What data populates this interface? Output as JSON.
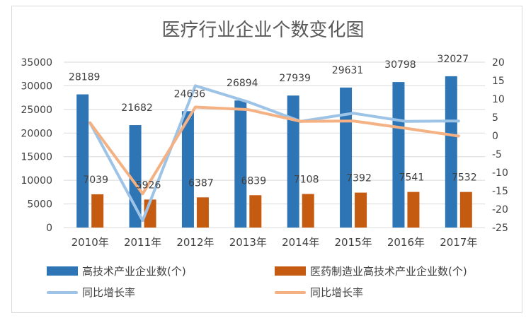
{
  "colors": {
    "series1": "#2e75b6",
    "series2": "#c55a11",
    "line1": "#9dc3e6",
    "line2": "#f4b183",
    "grid": "#d9d9d9",
    "text": "#404040"
  },
  "chart_data": {
    "type": "bar",
    "title": "医疗行业企业个数变化图",
    "categories": [
      "2010年",
      "2011年",
      "2012年",
      "2013年",
      "2014年",
      "2015年",
      "2016年",
      "2017年"
    ],
    "left_axis": {
      "min": 0,
      "max": 35000,
      "step": 5000,
      "ticks": [
        "0",
        "5000",
        "10000",
        "15000",
        "20000",
        "25000",
        "30000",
        "35000"
      ]
    },
    "right_axis": {
      "min": -25,
      "max": 20,
      "step": 5,
      "ticks": [
        "-25",
        "-20",
        "-15",
        "-10",
        "-5",
        "0",
        "5",
        "10",
        "15",
        "20"
      ]
    },
    "series": [
      {
        "name": "高技术产业企业数(个)",
        "type": "bar",
        "axis": "left",
        "values": [
          28189,
          21682,
          24636,
          26894,
          27939,
          29631,
          30798,
          32027
        ]
      },
      {
        "name": "医药制造业高技术产业企业数(个)",
        "type": "bar",
        "axis": "left",
        "values": [
          7039,
          5926,
          6387,
          6839,
          7108,
          7392,
          7541,
          7532
        ]
      },
      {
        "name": "同比增长率",
        "type": "line",
        "axis": "right",
        "values": [
          3.5,
          -23.1,
          13.6,
          9.2,
          3.9,
          6.1,
          3.9,
          4.0
        ]
      },
      {
        "name": "同比增长率",
        "type": "line",
        "axis": "right",
        "values": [
          3.5,
          -15.8,
          7.8,
          7.1,
          3.9,
          4.0,
          2.0,
          -0.1
        ]
      }
    ],
    "grid": true,
    "legend_position": "bottom"
  }
}
